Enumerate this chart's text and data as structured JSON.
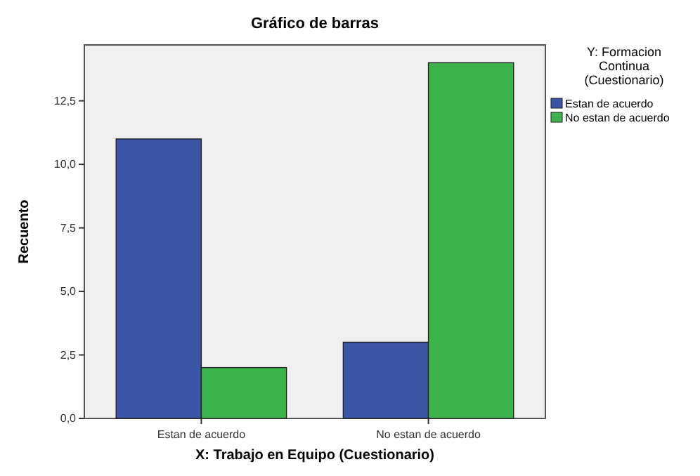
{
  "chart_data": {
    "type": "bar",
    "title": "Gráfico de barras",
    "xlabel": "X: Trabajo en Equipo (Cuestionario)",
    "ylabel": "Recuento",
    "legend_title": "Y: Formacion Continua (Cuestionario)",
    "legend": "right",
    "categories": [
      "Estan de acuerdo",
      "No estan de acuerdo"
    ],
    "series": [
      {
        "name": "Estan de acuerdo",
        "color": "#3c55a5",
        "values": [
          11,
          3
        ]
      },
      {
        "name": "No estan de acuerdo",
        "color": "#3cb44b",
        "values": [
          2,
          14
        ]
      }
    ],
    "ylim": [
      0,
      14.7
    ],
    "yticks": [
      {
        "value": 0,
        "label": "0,0"
      },
      {
        "value": 2.5,
        "label": "2,5"
      },
      {
        "value": 5,
        "label": "5,0"
      },
      {
        "value": 7.5,
        "label": "7,5"
      },
      {
        "value": 10,
        "label": "10,0"
      },
      {
        "value": 12.5,
        "label": "12,5"
      }
    ],
    "grid": false
  }
}
